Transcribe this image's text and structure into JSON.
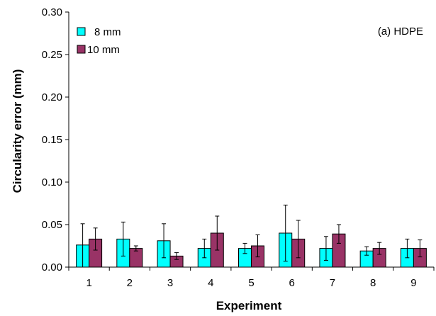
{
  "chart_data": {
    "type": "bar",
    "title": "",
    "annotation": "(a) HDPE",
    "xlabel": "Experiment",
    "ylabel": "Circularity error (mm)",
    "ylim": [
      0,
      0.3
    ],
    "yticks": [
      "0.00",
      "0.05",
      "0.10",
      "0.15",
      "0.20",
      "0.25",
      "0.30"
    ],
    "ytick_values": [
      0,
      0.05,
      0.1,
      0.15,
      0.2,
      0.25,
      0.3
    ],
    "categories": [
      "1",
      "2",
      "3",
      "4",
      "5",
      "6",
      "7",
      "8",
      "9"
    ],
    "grid": false,
    "legend_position": "top-left",
    "series": [
      {
        "name": "8 mm",
        "color": "#00ffff",
        "values": [
          0.026,
          0.033,
          0.031,
          0.022,
          0.022,
          0.04,
          0.022,
          0.019,
          0.022
        ],
        "error_upper": [
          0.051,
          0.053,
          0.051,
          0.033,
          0.028,
          0.073,
          0.036,
          0.024,
          0.033
        ],
        "error_lower": [
          0.0,
          0.013,
          0.011,
          0.011,
          0.016,
          0.007,
          0.008,
          0.014,
          0.011
        ]
      },
      {
        "name": "10 mm",
        "color": "#993366",
        "values": [
          0.033,
          0.022,
          0.013,
          0.04,
          0.025,
          0.033,
          0.039,
          0.022,
          0.022
        ],
        "error_upper": [
          0.046,
          0.025,
          0.017,
          0.06,
          0.038,
          0.055,
          0.05,
          0.029,
          0.032
        ],
        "error_lower": [
          0.02,
          0.019,
          0.009,
          0.02,
          0.012,
          0.011,
          0.028,
          0.015,
          0.012
        ]
      }
    ]
  }
}
